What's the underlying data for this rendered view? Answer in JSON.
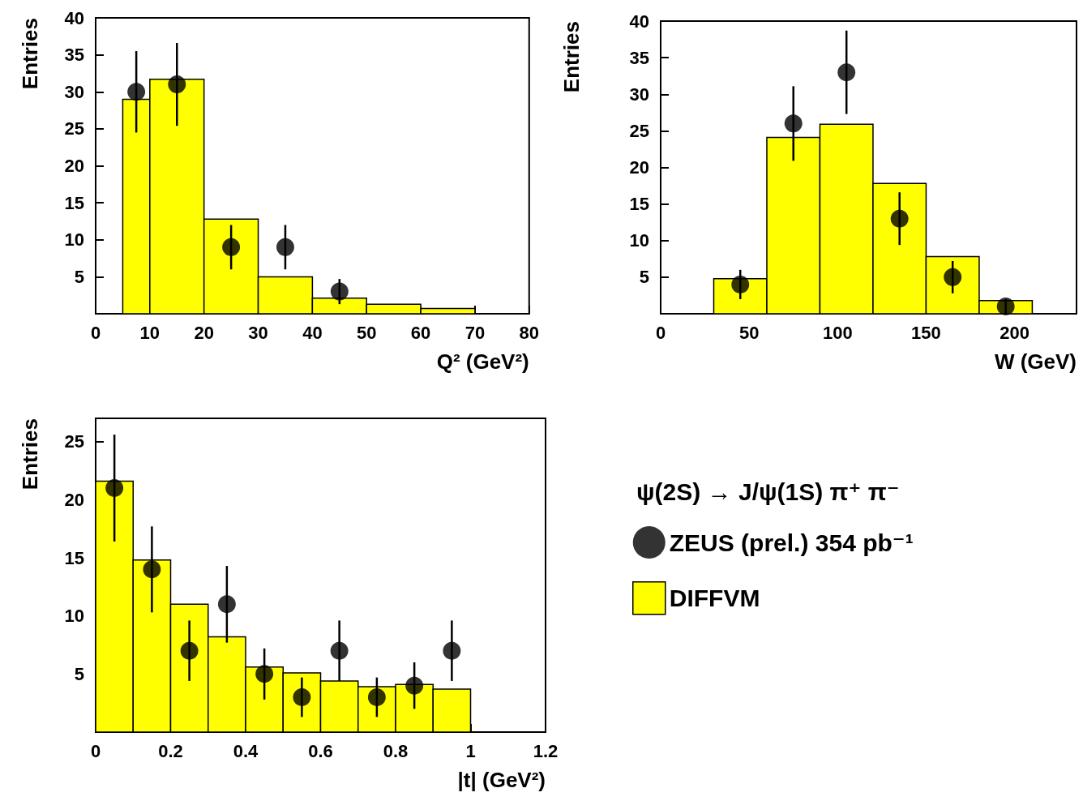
{
  "chart_data": [
    {
      "type": "histogram",
      "xlabel": "Q² (GeV²)",
      "ylabel": "Entries",
      "xlim": [
        0,
        80
      ],
      "xticks": [
        0,
        10,
        20,
        30,
        40,
        50,
        60,
        70,
        80
      ],
      "ylim": [
        0,
        40
      ],
      "yticks": [
        5,
        10,
        15,
        20,
        25,
        30,
        35,
        40
      ],
      "grid": false,
      "legend": false,
      "marker": "circle",
      "series": [
        {
          "color": "#ffff00",
          "bins": [
            5,
            10,
            20,
            30,
            40,
            50,
            60,
            70
          ],
          "values": [
            29,
            31.7,
            12.8,
            5,
            2.1,
            1.3,
            0.7
          ]
        },
        {
          "type": "scatter",
          "color": "#000000",
          "x": [
            7.5,
            15,
            25,
            35,
            45
          ],
          "values": [
            30,
            31,
            9,
            9,
            3
          ],
          "errors": [
            5.5,
            5.6,
            3,
            3,
            1.7
          ]
        }
      ]
    },
    {
      "type": "histogram",
      "xlabel": "W (GeV)",
      "ylabel": "Entries",
      "xlim": [
        0,
        235
      ],
      "xticks": [
        0,
        50,
        100,
        150,
        200
      ],
      "ylim": [
        0,
        40
      ],
      "yticks": [
        5,
        10,
        15,
        20,
        25,
        30,
        35,
        40
      ],
      "grid": false,
      "legend": false,
      "marker": "circle",
      "series": [
        {
          "color": "#ffff00",
          "bins": [
            30,
            60,
            90,
            120,
            150,
            180,
            210
          ],
          "values": [
            4.8,
            24.1,
            25.9,
            17.8,
            7.8,
            1.8
          ]
        },
        {
          "type": "scatter",
          "color": "#000000",
          "x": [
            45,
            75,
            105,
            135,
            165,
            195
          ],
          "values": [
            4,
            26,
            33,
            13,
            5,
            1
          ],
          "errors": [
            2,
            5.1,
            5.7,
            3.6,
            2.2,
            1
          ]
        }
      ]
    },
    {
      "type": "histogram",
      "xlabel": "|t| (GeV²)",
      "ylabel": "Entries",
      "xlim": [
        0,
        1.2
      ],
      "xticks": [
        0,
        0.2,
        0.4,
        0.6,
        0.8,
        1,
        1.2
      ],
      "ylim": [
        0,
        27
      ],
      "yticks": [
        5,
        10,
        15,
        20,
        25
      ],
      "grid": false,
      "legend": "right",
      "legend_title": "ψ(2S) → J/ψ(1S) π⁺ π⁻",
      "marker": "circle",
      "series": [
        {
          "type": "scatter",
          "name": "ZEUS (prel.) 354 pb⁻¹",
          "color": "#000000",
          "x": [
            0.05,
            0.15,
            0.25,
            0.35,
            0.45,
            0.55,
            0.65,
            0.75,
            0.85,
            0.95
          ],
          "values": [
            21,
            14,
            7,
            11,
            5,
            3,
            7,
            3,
            4,
            7
          ],
          "errors": [
            4.6,
            3.7,
            2.6,
            3.3,
            2.2,
            1.7,
            2.6,
            1.7,
            2,
            2.6
          ]
        },
        {
          "name": "DIFFVM",
          "color": "#ffff00",
          "bins": [
            0,
            0.1,
            0.2,
            0.3,
            0.4,
            0.5,
            0.6,
            0.7,
            0.8,
            0.9,
            1.0
          ],
          "values": [
            21.6,
            14.8,
            11,
            8.2,
            5.6,
            5.1,
            4.4,
            3.9,
            4.1,
            3.7
          ]
        }
      ]
    }
  ]
}
